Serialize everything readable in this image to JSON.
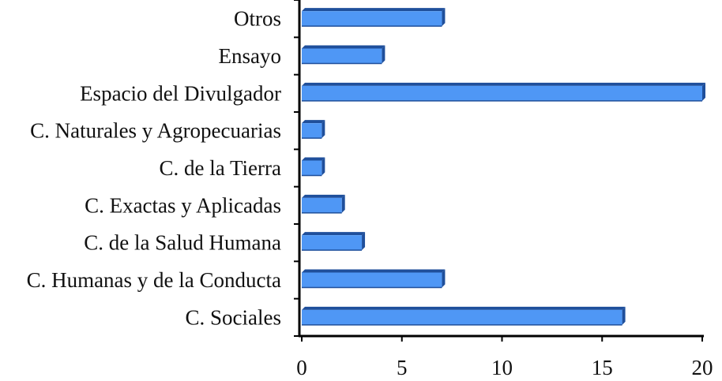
{
  "chart_data": {
    "type": "bar",
    "orientation": "horizontal",
    "categories": [
      "Otros",
      "Ensayo",
      "Espacio del Divulgador",
      "C. Naturales y Agropecuarias",
      "C. de la Tierra",
      "C. Exactas y Aplicadas",
      "C. de la Salud Humana",
      "C. Humanas y de la Conducta",
      "C. Sociales"
    ],
    "values": [
      7,
      4,
      20,
      1,
      1,
      2,
      3,
      7,
      16
    ],
    "xticks": [
      "0",
      "5",
      "10",
      "15",
      "20"
    ],
    "xlim": [
      0,
      20
    ],
    "grid": false,
    "legend": "none",
    "colors": {
      "bar_face": "#4f97f5",
      "bar_top": "#7fb2f8",
      "bar_side": "#1f4f9b",
      "axis": "#000000"
    }
  }
}
